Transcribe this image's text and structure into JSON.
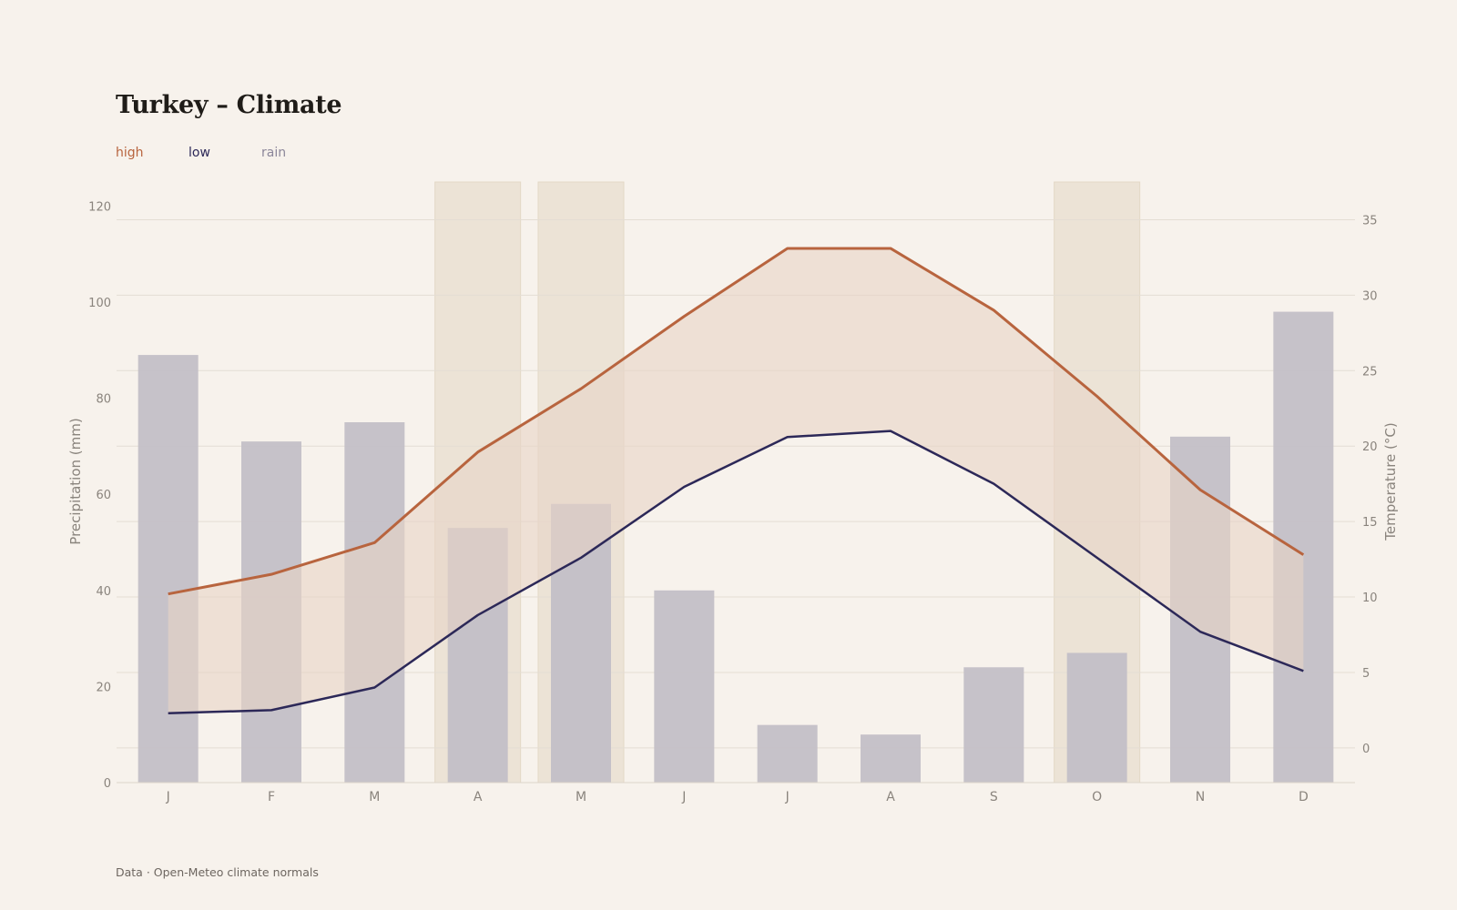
{
  "title": "Turkey – Climate",
  "footer": "Data · Open-Meteo climate normals",
  "colors": {
    "background": "#f7f2ec",
    "high": "#b8643e",
    "low": "#2c2858",
    "rain": "#8c879a",
    "rain_bar": "#c3bfc7",
    "band_fill": "#e8d3c7",
    "highlight": "#ece3d6",
    "grid": "#e4ddd4",
    "axis_text": "#8a847d"
  },
  "chart_data": {
    "type": "bar",
    "categories": [
      "J",
      "F",
      "M",
      "A",
      "M",
      "J",
      "J",
      "A",
      "S",
      "O",
      "N",
      "D"
    ],
    "series": [
      {
        "name": "rain",
        "type": "bar",
        "axis": "left",
        "values": [
          89,
          71,
          75,
          53,
          58,
          40,
          12,
          10,
          24,
          27,
          72,
          98
        ]
      },
      {
        "name": "high",
        "type": "line",
        "axis": "right",
        "values": [
          10.2,
          11.5,
          13.6,
          19.6,
          23.8,
          28.6,
          33.1,
          33.1,
          29.0,
          23.3,
          17.1,
          12.8
        ]
      },
      {
        "name": "low",
        "type": "line",
        "axis": "right",
        "values": [
          2.3,
          2.5,
          4.0,
          8.8,
          12.6,
          17.3,
          20.6,
          21.0,
          17.5,
          12.6,
          7.7,
          5.1
        ]
      }
    ],
    "band_between": [
      "low",
      "high"
    ],
    "highlighted_months": [
      3,
      4,
      9
    ],
    "left_axis": {
      "label": "Precipitation (mm)",
      "ylim": [
        0,
        125
      ],
      "ticks": [
        0,
        20,
        40,
        60,
        80,
        100,
        120
      ]
    },
    "right_axis": {
      "label": "Temperature (°C)",
      "ylim": [
        -2.3,
        37.5
      ],
      "ticks": [
        0,
        5,
        10,
        15,
        20,
        25,
        30,
        35
      ]
    },
    "legend": {
      "placement": "top-left",
      "entries": [
        "high",
        "low",
        "rain"
      ]
    },
    "grid": true
  }
}
